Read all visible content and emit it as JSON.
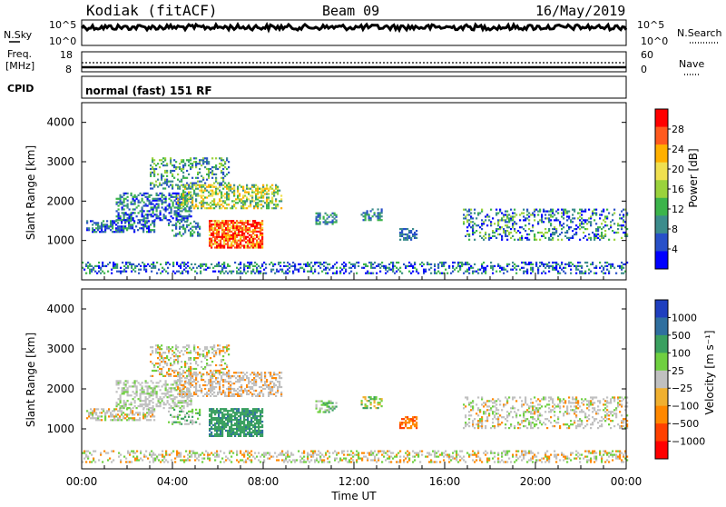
{
  "header": {
    "station": "Kodiak (fitACF)",
    "beam": "Beam 09",
    "date": "16/May/2019"
  },
  "top_panels": {
    "nsky_label": "N.Sky",
    "nsky_ticks": [
      "10^5",
      "10^0"
    ],
    "nsearch_label": "N.Search",
    "nsearch_ticks": [
      "10^5",
      "10^0"
    ],
    "freq_label": "Freq.",
    "freq_unit": "[MHz]",
    "freq_ticks": [
      "18",
      "8"
    ],
    "nave_label": "Nave",
    "nave_ticks": [
      "60",
      "0"
    ],
    "cpid_label": "CPID",
    "cpid_value": "normal (fast) 151 RF"
  },
  "chart_data": [
    {
      "type": "heatmap",
      "name": "power",
      "ylabel": "Slant Range [km]",
      "yticks": [
        1000,
        2000,
        3000,
        4000
      ],
      "ylim": [
        0,
        4500
      ],
      "xlim": [
        0,
        24
      ],
      "colorbar": {
        "label": "Power [dB]",
        "ticks": [
          "28",
          "24",
          "20",
          "16",
          "12",
          "8",
          "4"
        ],
        "colors": [
          "#ff0000",
          "#ff5a1e",
          "#ffb000",
          "#f0e050",
          "#9ad23c",
          "#3cb44b",
          "#3c8c8c",
          "#2850c8",
          "#0000ff"
        ]
      }
    },
    {
      "type": "heatmap",
      "name": "velocity",
      "ylabel": "Slant Range [km]",
      "yticks": [
        1000,
        2000,
        3000,
        4000
      ],
      "ylim": [
        0,
        4500
      ],
      "xlim": [
        0,
        24
      ],
      "xlabel": "Time UT",
      "xticks": [
        "00:00",
        "04:00",
        "08:00",
        "12:00",
        "16:00",
        "20:00",
        "00:00"
      ],
      "colorbar": {
        "label": "Velocity [m s⁻¹]",
        "ticks": [
          "1000",
          "500",
          "100",
          "25",
          "−25",
          "−100",
          "−500",
          "−1000"
        ],
        "colors": [
          "#1f3fbf",
          "#2f6f9f",
          "#3aa060",
          "#6fd040",
          "#c0c0c0",
          "#f0b030",
          "#ff8800",
          "#ff4000",
          "#ff0000"
        ]
      }
    }
  ]
}
